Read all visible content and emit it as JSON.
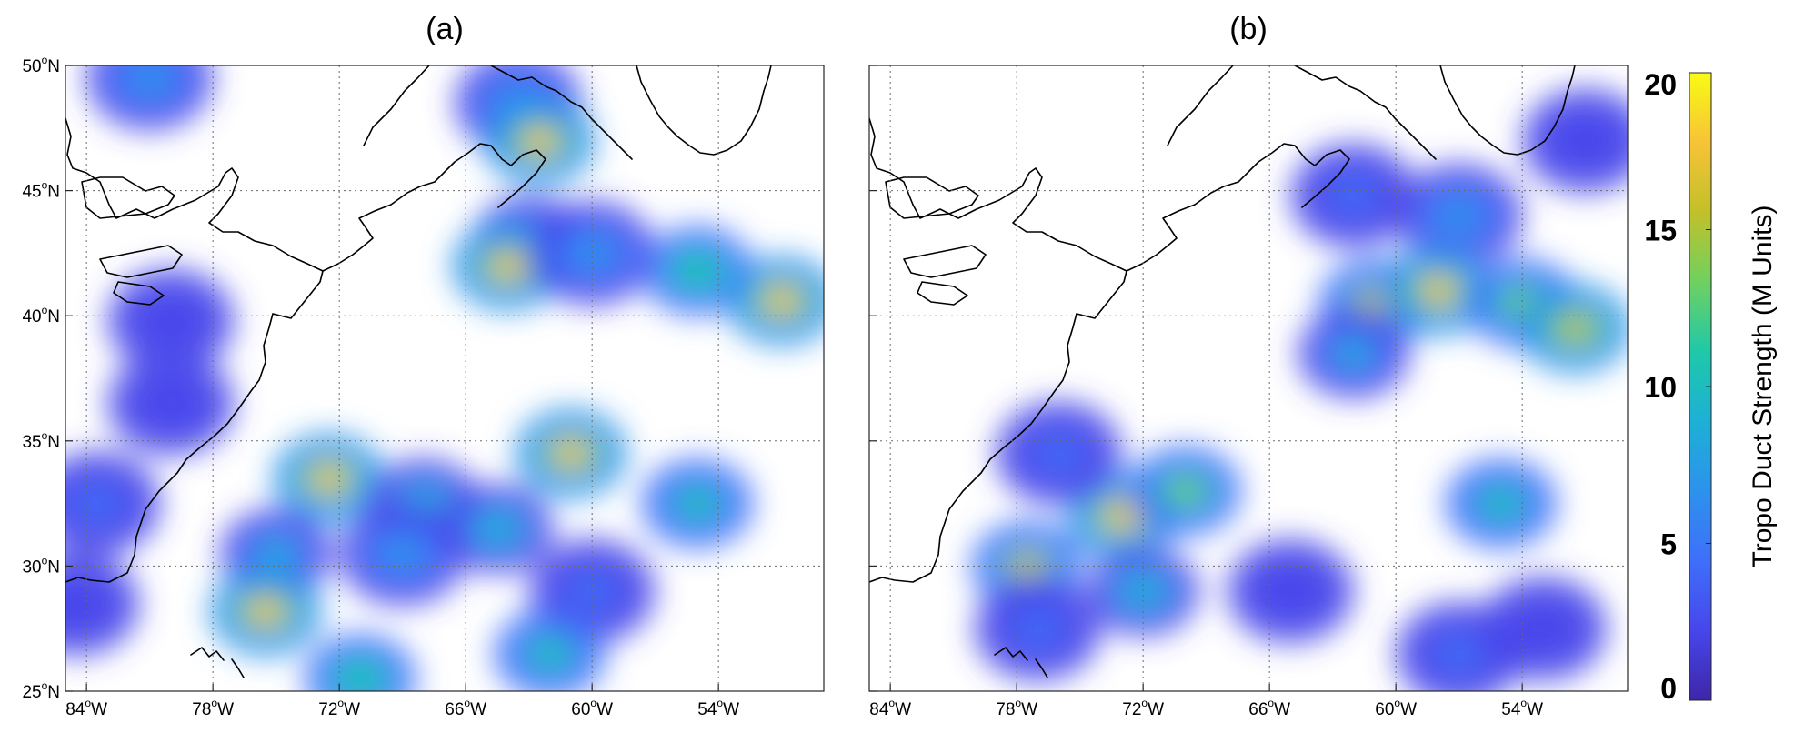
{
  "panels": [
    {
      "title": "(a)",
      "blobs": [
        {
          "lon": -81.0,
          "lat": 49.5,
          "level": 6
        },
        {
          "lon": -63.5,
          "lat": 48.5,
          "level": 7
        },
        {
          "lon": -62.5,
          "lat": 47.0,
          "level": 17
        },
        {
          "lon": -63.0,
          "lat": 43.0,
          "level": 8
        },
        {
          "lon": -64.0,
          "lat": 42.0,
          "level": 18
        },
        {
          "lon": -60.0,
          "lat": 42.5,
          "level": 7
        },
        {
          "lon": -55.0,
          "lat": 41.8,
          "level": 12
        },
        {
          "lon": -51.0,
          "lat": 40.6,
          "level": 17
        },
        {
          "lon": -80.0,
          "lat": 36.5,
          "level": 3
        },
        {
          "lon": -80.0,
          "lat": 39.8,
          "level": 3
        },
        {
          "lon": -72.5,
          "lat": 33.5,
          "level": 18
        },
        {
          "lon": -68.0,
          "lat": 32.5,
          "level": 9
        },
        {
          "lon": -61.0,
          "lat": 34.5,
          "level": 17
        },
        {
          "lon": -75.0,
          "lat": 30.5,
          "level": 8
        },
        {
          "lon": -75.5,
          "lat": 28.2,
          "level": 18
        },
        {
          "lon": -69.0,
          "lat": 30.5,
          "level": 7
        },
        {
          "lon": -64.5,
          "lat": 31.5,
          "level": 9
        },
        {
          "lon": -55.0,
          "lat": 32.5,
          "level": 10
        },
        {
          "lon": -60.0,
          "lat": 29.0,
          "level": 4
        },
        {
          "lon": -62.0,
          "lat": 26.5,
          "level": 10
        },
        {
          "lon": -83.5,
          "lat": 32.5,
          "level": 4
        },
        {
          "lon": -84.5,
          "lat": 28.5,
          "level": 3
        },
        {
          "lon": -71.0,
          "lat": 25.5,
          "level": 12
        }
      ]
    },
    {
      "title": "(b)",
      "blobs": [
        {
          "lon": -57.0,
          "lat": 44.0,
          "level": 7
        },
        {
          "lon": -51.0,
          "lat": 47.0,
          "level": 3
        },
        {
          "lon": -62.0,
          "lat": 44.8,
          "level": 4
        },
        {
          "lon": -61.0,
          "lat": 40.5,
          "level": 15
        },
        {
          "lon": -58.0,
          "lat": 41.0,
          "level": 17
        },
        {
          "lon": -54.0,
          "lat": 40.5,
          "level": 13
        },
        {
          "lon": -51.5,
          "lat": 39.5,
          "level": 16
        },
        {
          "lon": -62.0,
          "lat": 38.5,
          "level": 8
        },
        {
          "lon": -73.0,
          "lat": 32.0,
          "level": 17
        },
        {
          "lon": -70.0,
          "lat": 33.0,
          "level": 14
        },
        {
          "lon": -77.5,
          "lat": 30.0,
          "level": 15
        },
        {
          "lon": -76.0,
          "lat": 34.5,
          "level": 5
        },
        {
          "lon": -72.0,
          "lat": 29.0,
          "level": 9
        },
        {
          "lon": -77.0,
          "lat": 27.5,
          "level": 5
        },
        {
          "lon": -55.0,
          "lat": 32.5,
          "level": 11
        },
        {
          "lon": -65.0,
          "lat": 29.0,
          "level": 3
        },
        {
          "lon": -57.0,
          "lat": 26.5,
          "level": 4
        },
        {
          "lon": -53.0,
          "lat": 27.5,
          "level": 3
        }
      ]
    }
  ],
  "x_ticks": [
    {
      "lon": -84,
      "label": "84",
      "hemi": "W"
    },
    {
      "lon": -78,
      "label": "78",
      "hemi": "W"
    },
    {
      "lon": -72,
      "label": "72",
      "hemi": "W"
    },
    {
      "lon": -66,
      "label": "66",
      "hemi": "W"
    },
    {
      "lon": -60,
      "label": "60",
      "hemi": "W"
    },
    {
      "lon": -54,
      "label": "54",
      "hemi": "W"
    }
  ],
  "y_ticks": [
    {
      "lat": 50,
      "label": "50",
      "hemi": "N"
    },
    {
      "lat": 45,
      "label": "45",
      "hemi": "N"
    },
    {
      "lat": 40,
      "label": "40",
      "hemi": "N"
    },
    {
      "lat": 35,
      "label": "35",
      "hemi": "N"
    },
    {
      "lat": 30,
      "label": "30",
      "hemi": "N"
    },
    {
      "lat": 25,
      "label": "25",
      "hemi": "N"
    }
  ],
  "extent": {
    "lon_min": -85,
    "lon_max": -49,
    "lat_min": 25,
    "lat_max": 50
  },
  "degree_symbol": "o",
  "colorbar": {
    "label": "Tropo Duct Strength (M Units)",
    "ticks": [
      "0",
      "5",
      "10",
      "15",
      "20"
    ],
    "min": 0,
    "max": 20,
    "colormap": "parula",
    "colors": [
      "#3e26a8",
      "#4746eb",
      "#3e6ffa",
      "#2d92ec",
      "#1db0d6",
      "#1fc8a9",
      "#6fd160",
      "#c2c02a",
      "#f7c337",
      "#f9fb14"
    ]
  }
}
